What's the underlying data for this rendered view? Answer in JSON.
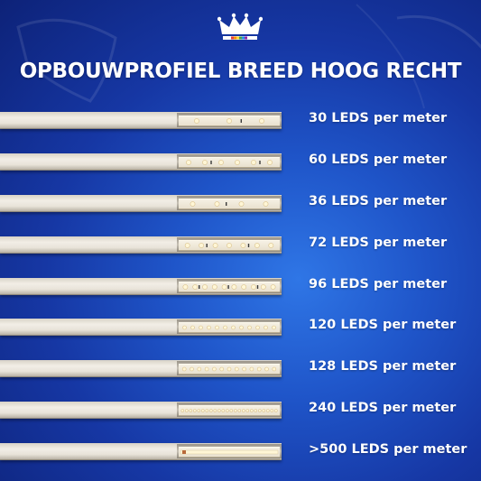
{
  "title": "OPBOUWPROFIEL BREED HOOG RECHT",
  "logo_icon": "crown-icon",
  "colors": {
    "background": "#1f55c9",
    "text": "#ffffff",
    "profile": "#ece7dd",
    "led": "#fff6d6"
  },
  "rows": [
    {
      "label": "30 LEDS per meter",
      "density": 30
    },
    {
      "label": "60 LEDS per meter",
      "density": 60
    },
    {
      "label": "36 LEDS per meter",
      "density": 36
    },
    {
      "label": "72 LEDS per meter",
      "density": 72
    },
    {
      "label": "96 LEDS per meter",
      "density": 96
    },
    {
      "label": "120 LEDS per meter",
      "density": 120
    },
    {
      "label": "128 LEDS per meter",
      "density": 128
    },
    {
      "label": "240 LEDS per meter",
      "density": 240
    },
    {
      "label": ">500 LEDS per meter",
      "density": 500
    }
  ]
}
